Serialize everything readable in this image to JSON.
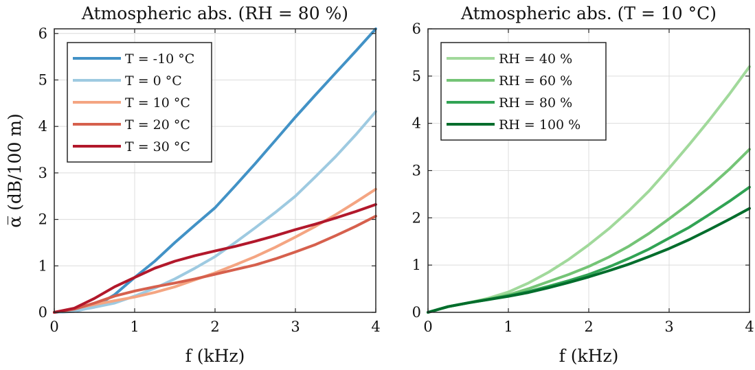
{
  "chart_data": [
    {
      "type": "line",
      "title": "Atmospheric abs. (RH = 80 %)",
      "xlabel": "f (kHz)",
      "ylabel": "α̅ (dB/100 m)",
      "xlim": [
        0,
        4
      ],
      "ylim": [
        0,
        6.1
      ],
      "xticks": [
        "0",
        "1",
        "2",
        "3",
        "4"
      ],
      "yticks": [
        "0",
        "1",
        "2",
        "3",
        "4",
        "5",
        "6"
      ],
      "grid": true,
      "legend_position": "top-left",
      "series": [
        {
          "name": "T = -10 °C",
          "color": "#4292c6",
          "x": [
            0,
            0.25,
            0.5,
            0.75,
            1,
            1.25,
            1.5,
            1.75,
            2,
            2.25,
            2.5,
            2.75,
            3,
            3.25,
            3.5,
            3.75,
            4
          ],
          "y": [
            0,
            0.02,
            0.12,
            0.38,
            0.75,
            1.1,
            1.5,
            1.88,
            2.25,
            2.72,
            3.2,
            3.7,
            4.2,
            4.68,
            5.15,
            5.62,
            6.1
          ]
        },
        {
          "name": "T = 0 °C",
          "color": "#9ecae1",
          "x": [
            0,
            0.25,
            0.5,
            0.75,
            1,
            1.25,
            1.5,
            1.75,
            2,
            2.25,
            2.5,
            2.75,
            3,
            3.25,
            3.5,
            3.75,
            4
          ],
          "y": [
            0,
            0.03,
            0.11,
            0.2,
            0.35,
            0.52,
            0.72,
            0.95,
            1.2,
            1.5,
            1.82,
            2.15,
            2.5,
            2.92,
            3.35,
            3.82,
            4.32
          ]
        },
        {
          "name": "T = 10 °C",
          "color": "#f4a582",
          "x": [
            0,
            0.25,
            0.5,
            0.75,
            1,
            1.25,
            1.5,
            1.75,
            2,
            2.25,
            2.5,
            2.75,
            3,
            3.25,
            3.5,
            3.75,
            4
          ],
          "y": [
            0,
            0.08,
            0.17,
            0.25,
            0.33,
            0.43,
            0.55,
            0.7,
            0.85,
            1.02,
            1.2,
            1.4,
            1.62,
            1.85,
            2.1,
            2.37,
            2.65
          ]
        },
        {
          "name": "T = 20 °C",
          "color": "#d6604d",
          "x": [
            0,
            0.25,
            0.5,
            0.75,
            1,
            1.25,
            1.5,
            1.75,
            2,
            2.25,
            2.5,
            2.75,
            3,
            3.25,
            3.5,
            3.75,
            4
          ],
          "y": [
            0,
            0.07,
            0.2,
            0.35,
            0.46,
            0.55,
            0.63,
            0.72,
            0.82,
            0.92,
            1.02,
            1.15,
            1.3,
            1.46,
            1.65,
            1.85,
            2.07
          ]
        },
        {
          "name": "T = 30 °C",
          "color": "#b2182b",
          "x": [
            0,
            0.25,
            0.5,
            0.75,
            1,
            1.25,
            1.5,
            1.75,
            2,
            2.25,
            2.5,
            2.75,
            3,
            3.25,
            3.5,
            3.75,
            4
          ],
          "y": [
            0,
            0.09,
            0.3,
            0.55,
            0.75,
            0.95,
            1.1,
            1.22,
            1.32,
            1.42,
            1.53,
            1.65,
            1.78,
            1.9,
            2.03,
            2.17,
            2.32
          ]
        }
      ]
    },
    {
      "type": "line",
      "title": "Atmospheric abs. (T = 10 °C)",
      "xlabel": "f (kHz)",
      "ylabel": "",
      "xlim": [
        0,
        4
      ],
      "ylim": [
        0,
        6
      ],
      "xticks": [
        "0",
        "1",
        "2",
        "3",
        "4"
      ],
      "yticks": [
        "0",
        "1",
        "2",
        "3",
        "4",
        "5",
        "6"
      ],
      "grid": true,
      "legend_position": "top-left",
      "series": [
        {
          "name": "RH = 40 %",
          "color": "#a1d99b",
          "x": [
            0,
            0.25,
            0.5,
            0.75,
            1,
            1.25,
            1.5,
            1.75,
            2,
            2.25,
            2.5,
            2.75,
            3,
            3.25,
            3.5,
            3.75,
            4
          ],
          "y": [
            0,
            0.12,
            0.2,
            0.3,
            0.43,
            0.62,
            0.85,
            1.12,
            1.43,
            1.77,
            2.15,
            2.57,
            3.05,
            3.55,
            4.07,
            4.62,
            5.2
          ]
        },
        {
          "name": "RH = 60 %",
          "color": "#74c476",
          "x": [
            0,
            0.25,
            0.5,
            0.75,
            1,
            1.25,
            1.5,
            1.75,
            2,
            2.25,
            2.5,
            2.75,
            3,
            3.25,
            3.5,
            3.75,
            4
          ],
          "y": [
            0,
            0.12,
            0.2,
            0.28,
            0.37,
            0.5,
            0.65,
            0.8,
            0.97,
            1.17,
            1.4,
            1.67,
            1.98,
            2.3,
            2.65,
            3.03,
            3.45
          ]
        },
        {
          "name": "RH = 80 %",
          "color": "#31a354",
          "x": [
            0,
            0.25,
            0.5,
            0.75,
            1,
            1.25,
            1.5,
            1.75,
            2,
            2.25,
            2.5,
            2.75,
            3,
            3.25,
            3.5,
            3.75,
            4
          ],
          "y": [
            0,
            0.12,
            0.2,
            0.27,
            0.35,
            0.44,
            0.55,
            0.67,
            0.8,
            0.96,
            1.14,
            1.34,
            1.57,
            1.8,
            2.07,
            2.35,
            2.65
          ]
        },
        {
          "name": "RH = 100 %",
          "color": "#006d2c",
          "x": [
            0,
            0.25,
            0.5,
            0.75,
            1,
            1.25,
            1.5,
            1.75,
            2,
            2.25,
            2.5,
            2.75,
            3,
            3.25,
            3.5,
            3.75,
            4
          ],
          "y": [
            0,
            0.12,
            0.2,
            0.27,
            0.34,
            0.42,
            0.52,
            0.63,
            0.75,
            0.88,
            1.02,
            1.18,
            1.35,
            1.54,
            1.75,
            1.97,
            2.2
          ]
        }
      ]
    }
  ]
}
